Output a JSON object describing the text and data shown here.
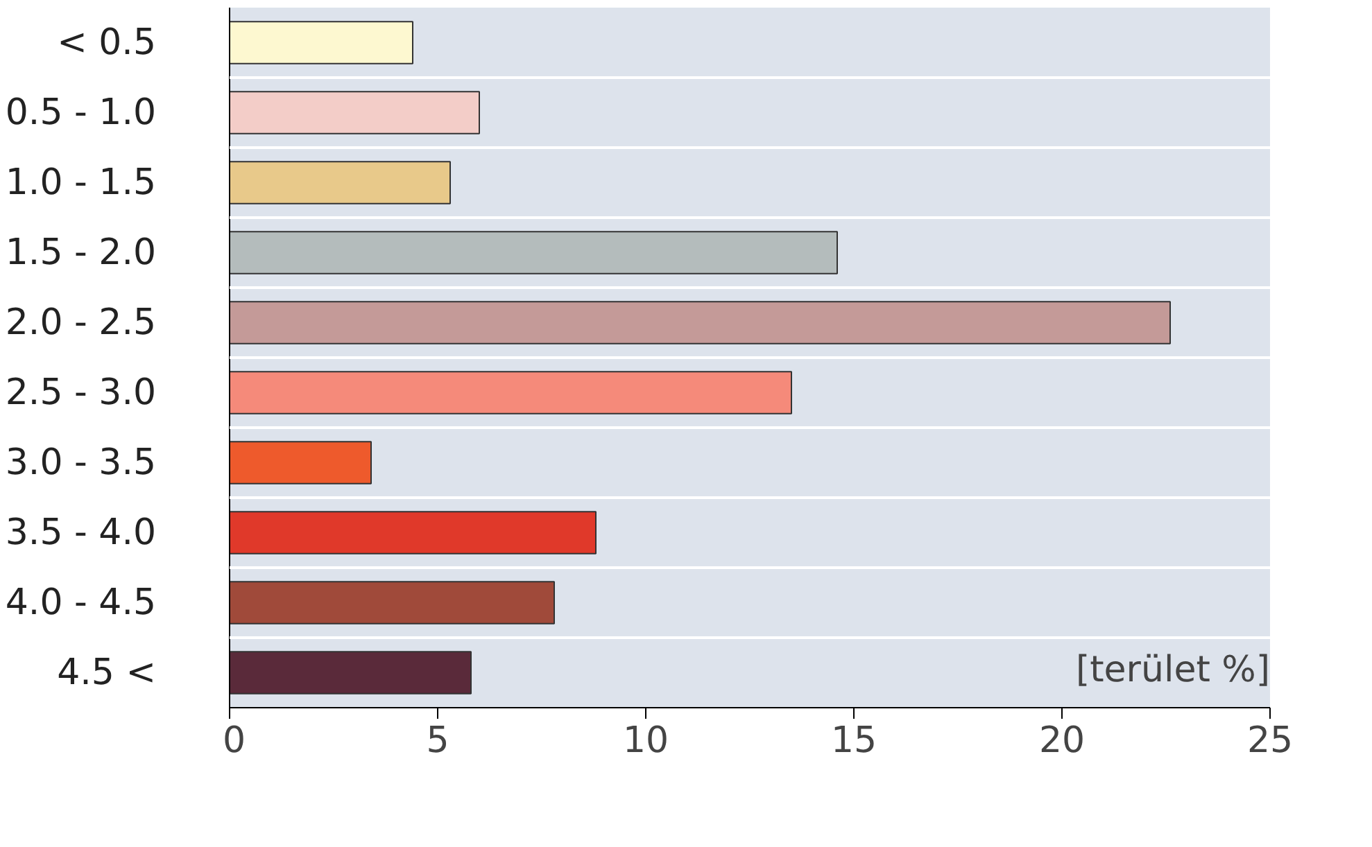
{
  "chart_data": {
    "type": "bar",
    "orientation": "horizontal",
    "xlabel": "[terület %]",
    "categories": [
      "< 0.5",
      "0.5 - 1.0",
      "1.0 - 1.5",
      "1.5 - 2.0",
      "2.0 - 2.5",
      "2.5 - 3.0",
      "3.0 - 3.5",
      "3.5 - 4.0",
      "4.0 - 4.5",
      "4.5 <"
    ],
    "values": [
      4.4,
      6.0,
      5.3,
      14.6,
      22.6,
      13.5,
      3.4,
      8.8,
      7.8,
      5.8
    ],
    "colors": [
      "#fdf8d0",
      "#f3cdc8",
      "#e8c98a",
      "#b4bcbc",
      "#c49a98",
      "#f58a7a",
      "#ee5a2c",
      "#e0392a",
      "#a04a3a",
      "#5a2a3a"
    ],
    "xlim": [
      0,
      25
    ],
    "xticks": [
      0,
      5,
      10,
      15,
      20,
      25
    ],
    "grid": "y"
  }
}
